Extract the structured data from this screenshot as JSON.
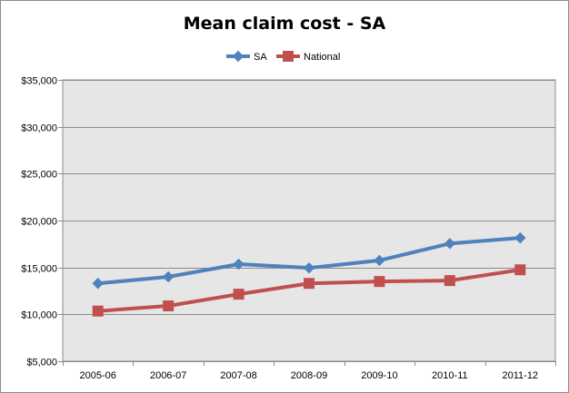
{
  "chart_data": {
    "type": "line",
    "title": "Mean claim cost - SA",
    "xlabel": "",
    "ylabel": "",
    "categories": [
      "2005-06",
      "2006-07",
      "2007-08",
      "2008-09",
      "2009-10",
      "2010-11",
      "2011-12"
    ],
    "series": [
      {
        "name": "SA",
        "color": "#4f81bd",
        "marker": "diamond",
        "values": [
          13300,
          14000,
          15350,
          14950,
          15750,
          17550,
          18150
        ]
      },
      {
        "name": "National",
        "color": "#c0504d",
        "marker": "square",
        "values": [
          10350,
          10900,
          12150,
          13300,
          13500,
          13600,
          14750
        ]
      }
    ],
    "ylim": [
      5000,
      35000
    ],
    "yticks": [
      5000,
      10000,
      15000,
      20000,
      25000,
      30000,
      35000
    ],
    "ytick_labels": [
      "$5,000",
      "$10,000",
      "$15,000",
      "$20,000",
      "$25,000",
      "$30,000",
      "$35,000"
    ],
    "grid": true,
    "legend_position": "top"
  },
  "style": {
    "plot_background": "#e6e6e6",
    "gridline_color": "#8c8c8c"
  }
}
